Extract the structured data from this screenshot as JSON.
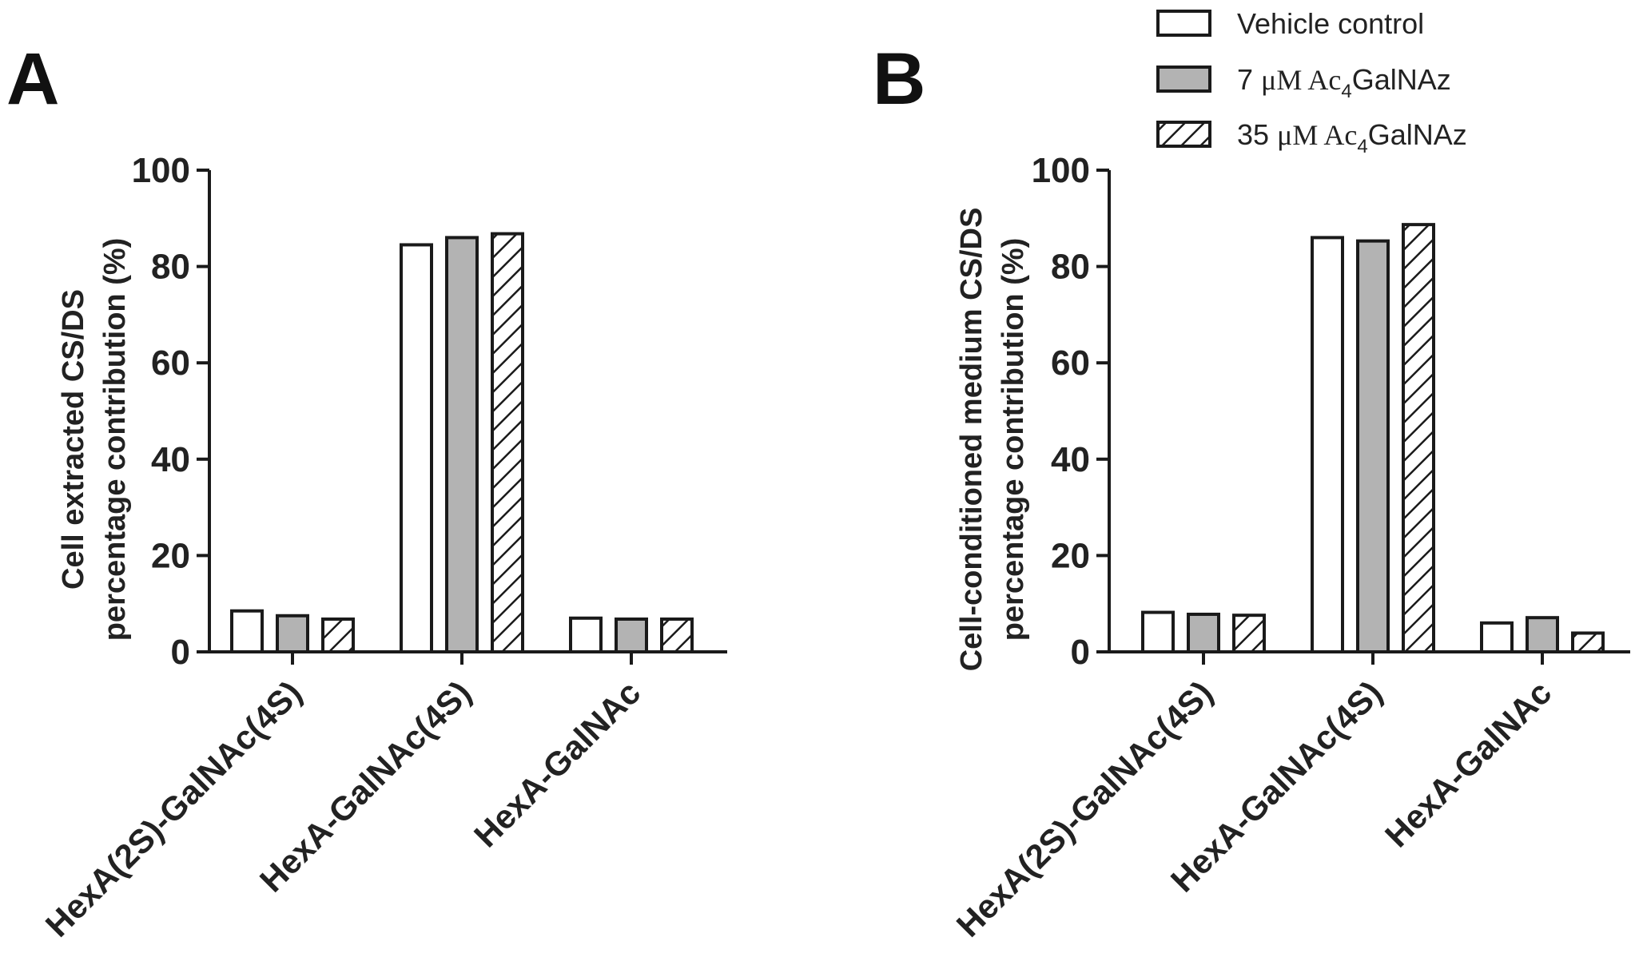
{
  "legend": {
    "items": [
      {
        "name": "Vehicle control",
        "style": "open"
      },
      {
        "name": "7 μM Ac4GalNAz",
        "style": "gray",
        "prefix": "7 ",
        "mu": "μM Ac",
        "sub": "4",
        "suffix": "GalNAz"
      },
      {
        "name": "35 μM Ac4GalNAz",
        "style": "hatch",
        "prefix": "35 ",
        "mu": "μM Ac",
        "sub": "4",
        "suffix": "GalNAz"
      }
    ]
  },
  "colors": {
    "open": "#ffffff",
    "gray": "#b3b3b3",
    "stroke": "#1a1a1a"
  },
  "chart_data": [
    {
      "type": "bar",
      "panel_label": "A",
      "ylabel_lines": [
        "Cell extracted CS/DS",
        "percentage contribution (%)"
      ],
      "ylim": [
        0,
        100
      ],
      "yticks": [
        0,
        20,
        40,
        60,
        80,
        100
      ],
      "categories": [
        "HexA(2S)-GalNAc(4S)",
        "HexA-GalNAc(4S)",
        "HexA-GalNAc"
      ],
      "series": [
        {
          "name": "Vehicle control",
          "values": [
            8.5,
            84.5,
            7.0
          ]
        },
        {
          "name": "7 μM Ac4GalNAz",
          "values": [
            7.5,
            86.0,
            6.8
          ]
        },
        {
          "name": "35 μM Ac4GalNAz",
          "values": [
            6.8,
            86.8,
            6.8
          ]
        }
      ]
    },
    {
      "type": "bar",
      "panel_label": "B",
      "ylabel_lines": [
        "Cell-conditioned medium CS/DS",
        "percentage contribution (%)"
      ],
      "ylim": [
        0,
        100
      ],
      "yticks": [
        0,
        20,
        40,
        60,
        80,
        100
      ],
      "categories": [
        "HexA(2S)-GalNAc(4S)",
        "HexA-GalNAc(4S)",
        "HexA-GalNAc"
      ],
      "series": [
        {
          "name": "Vehicle control",
          "values": [
            8.2,
            86.0,
            6.0
          ]
        },
        {
          "name": "7 μM Ac4GalNAz",
          "values": [
            7.8,
            85.3,
            7.1
          ]
        },
        {
          "name": "35 μM Ac4GalNAz",
          "values": [
            7.6,
            88.7,
            3.9
          ]
        }
      ]
    }
  ]
}
